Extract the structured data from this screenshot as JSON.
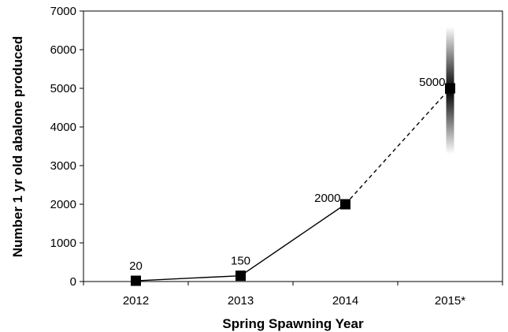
{
  "chart_data": {
    "type": "line",
    "title": "",
    "xlabel": "Spring Spawning Year",
    "ylabel": "Number 1 yr old abalone produced",
    "categories": [
      "2012",
      "2013",
      "2014",
      "2015*"
    ],
    "series": [
      {
        "values": [
          20,
          150,
          2000,
          5000
        ],
        "data_labels": [
          "20",
          "150",
          "2000",
          "5000"
        ]
      }
    ],
    "projected_segment": {
      "from_category": "2014",
      "to_category": "2015*",
      "line_style": "dashed"
    },
    "uncertainty_band": {
      "category": "2015*",
      "range": [
        3300,
        6600
      ]
    },
    "ylim": [
      0,
      7000
    ],
    "y_ticks": [
      0,
      1000,
      2000,
      3000,
      4000,
      5000,
      6000,
      7000
    ],
    "grid": false,
    "legend": "none",
    "colors": {
      "line": "#000000",
      "marker": "#000000",
      "axis": "#000000"
    }
  }
}
